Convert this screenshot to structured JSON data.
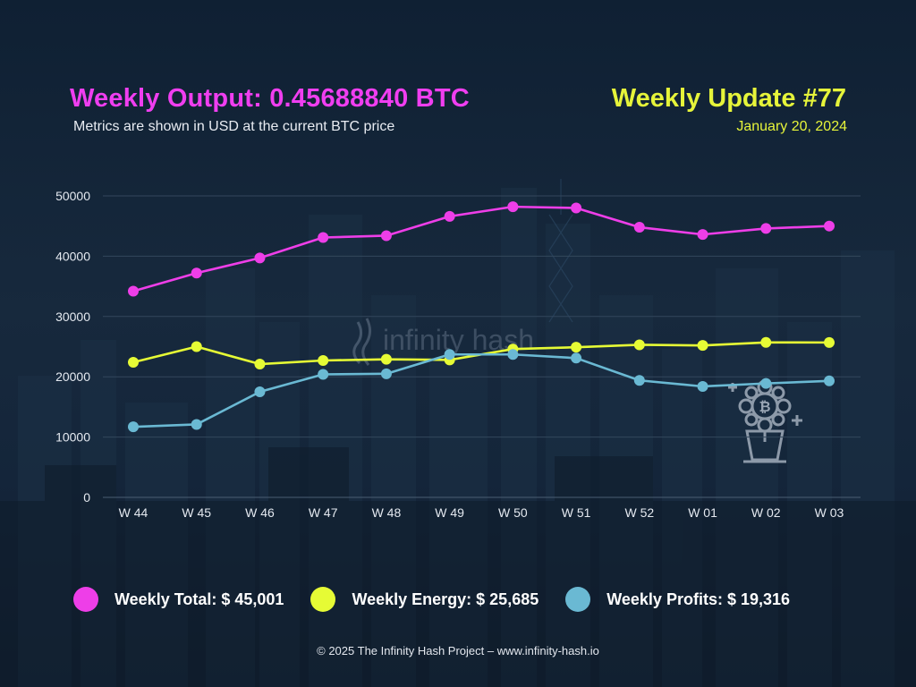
{
  "header": {
    "title": "Weekly Output: 0.45688840 BTC",
    "subtitle": "Metrics are shown in USD at the current BTC price",
    "update": "Weekly Update #77",
    "date": "January 20, 2024"
  },
  "watermark": {
    "text": "infinity hash"
  },
  "legend": [
    {
      "label": "Weekly Total: $ 45,001",
      "color": "#ee3ee8"
    },
    {
      "label": "Weekly Energy: $ 25,685",
      "color": "#e6fb35"
    },
    {
      "label": "Weekly Profits: $ 19,316",
      "color": "#6ab9d3"
    }
  ],
  "footer": "© 2025 The Infinity Hash Project – www.infinity-hash.io",
  "chart_data": {
    "type": "line",
    "categories": [
      "W 44",
      "W 45",
      "W 46",
      "W 47",
      "W 48",
      "W 49",
      "W 50",
      "W 51",
      "W 52",
      "W 01",
      "W 02",
      "W 03"
    ],
    "ylim": [
      0,
      50000
    ],
    "yticks": [
      0,
      10000,
      20000,
      30000,
      40000,
      50000
    ],
    "grid": true,
    "series": [
      {
        "name": "Weekly Total",
        "color": "#ee3ee8",
        "values": [
          34200,
          37200,
          39700,
          43100,
          43400,
          46600,
          48200,
          48000,
          44800,
          43600,
          44600,
          45001
        ]
      },
      {
        "name": "Weekly Energy",
        "color": "#e6fb35",
        "values": [
          22400,
          25000,
          22100,
          22700,
          22900,
          22800,
          24600,
          24900,
          25300,
          25200,
          25700,
          25685
        ]
      },
      {
        "name": "Weekly Profits",
        "color": "#6ab9d3",
        "values": [
          11700,
          12100,
          17500,
          20400,
          20500,
          23700,
          23700,
          23100,
          19400,
          18400,
          18900,
          19316
        ]
      }
    ]
  }
}
